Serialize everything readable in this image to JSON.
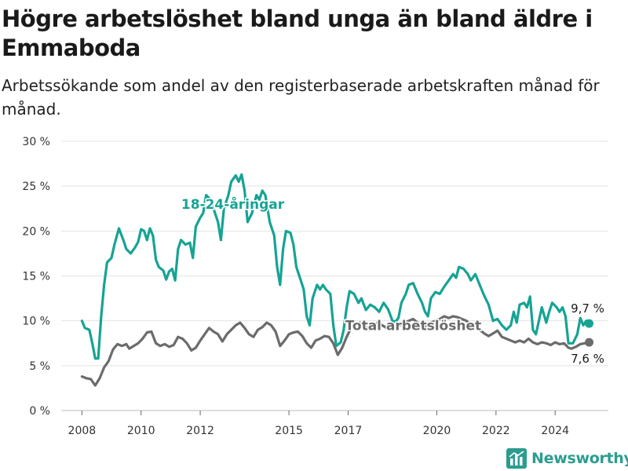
{
  "title": "Högre arbetslöshet bland unga än bland äldre i Emmaboda",
  "subtitle": "Arbetssökande som andel av den registerbaserade arbetskraften månad för månad.",
  "brand": {
    "name": "Newsworthy",
    "color": "#2a9d8f",
    "icon": "bar-chart-logo-icon"
  },
  "chart_data": {
    "type": "line",
    "x_unit": "year",
    "xlim": [
      2007.3,
      2025.8
    ],
    "ylim": [
      0,
      30
    ],
    "y_ticks": [
      0,
      5,
      10,
      15,
      20,
      25,
      30
    ],
    "y_tick_labels": [
      "0 %",
      "5 %",
      "10 %",
      "15 %",
      "20 %",
      "25 %",
      "30 %"
    ],
    "x_ticks": [
      2008,
      2010,
      2012,
      2015,
      2017,
      2020,
      2022,
      2024
    ],
    "x_tick_labels": [
      "2008",
      "2010",
      "2012",
      "2015",
      "2017",
      "2020",
      "2022",
      "2024"
    ],
    "grid": "horizontal",
    "series": [
      {
        "name": "18-24-åringar",
        "color": "#16a394",
        "end_value_label": "9,7 %",
        "points": [
          [
            2008.0,
            10.0
          ],
          [
            2008.1,
            9.2
          ],
          [
            2008.25,
            9.0
          ],
          [
            2008.35,
            7.5
          ],
          [
            2008.45,
            5.8
          ],
          [
            2008.55,
            5.8
          ],
          [
            2008.65,
            10.5
          ],
          [
            2008.75,
            14.0
          ],
          [
            2008.85,
            16.5
          ],
          [
            2009.0,
            17.0
          ],
          [
            2009.1,
            18.5
          ],
          [
            2009.25,
            20.3
          ],
          [
            2009.4,
            19.0
          ],
          [
            2009.5,
            18.0
          ],
          [
            2009.65,
            17.5
          ],
          [
            2009.8,
            18.2
          ],
          [
            2009.9,
            18.8
          ],
          [
            2010.0,
            20.2
          ],
          [
            2010.1,
            20.0
          ],
          [
            2010.2,
            19.0
          ],
          [
            2010.3,
            20.3
          ],
          [
            2010.4,
            19.5
          ],
          [
            2010.5,
            16.8
          ],
          [
            2010.6,
            16.0
          ],
          [
            2010.75,
            15.6
          ],
          [
            2010.85,
            14.6
          ],
          [
            2010.95,
            15.5
          ],
          [
            2011.05,
            15.8
          ],
          [
            2011.15,
            14.5
          ],
          [
            2011.25,
            18.0
          ],
          [
            2011.35,
            19.0
          ],
          [
            2011.5,
            18.5
          ],
          [
            2011.65,
            18.7
          ],
          [
            2011.75,
            17.0
          ],
          [
            2011.85,
            20.5
          ],
          [
            2012.0,
            21.5
          ],
          [
            2012.1,
            22.0
          ],
          [
            2012.2,
            24.0
          ],
          [
            2012.35,
            23.5
          ],
          [
            2012.5,
            22.0
          ],
          [
            2012.6,
            21.0
          ],
          [
            2012.7,
            19.0
          ],
          [
            2012.8,
            22.5
          ],
          [
            2012.95,
            24.0
          ],
          [
            2013.05,
            25.5
          ],
          [
            2013.2,
            26.2
          ],
          [
            2013.3,
            25.5
          ],
          [
            2013.4,
            26.3
          ],
          [
            2013.5,
            24.5
          ],
          [
            2013.6,
            21.0
          ],
          [
            2013.75,
            22.0
          ],
          [
            2013.9,
            24.0
          ],
          [
            2014.0,
            23.5
          ],
          [
            2014.1,
            24.5
          ],
          [
            2014.2,
            24.0
          ],
          [
            2014.35,
            21.0
          ],
          [
            2014.5,
            19.5
          ],
          [
            2014.6,
            16.0
          ],
          [
            2014.7,
            14.0
          ],
          [
            2014.8,
            18.0
          ],
          [
            2014.9,
            20.0
          ],
          [
            2015.05,
            19.8
          ],
          [
            2015.15,
            18.5
          ],
          [
            2015.25,
            16.0
          ],
          [
            2015.4,
            14.5
          ],
          [
            2015.5,
            13.5
          ],
          [
            2015.6,
            10.5
          ],
          [
            2015.7,
            9.5
          ],
          [
            2015.8,
            12.5
          ],
          [
            2015.95,
            14.0
          ],
          [
            2016.05,
            13.5
          ],
          [
            2016.15,
            14.0
          ],
          [
            2016.25,
            13.5
          ],
          [
            2016.4,
            13.0
          ],
          [
            2016.5,
            9.5
          ],
          [
            2016.6,
            7.2
          ],
          [
            2016.75,
            7.6
          ],
          [
            2016.85,
            9.0
          ],
          [
            2016.95,
            11.5
          ],
          [
            2017.05,
            13.3
          ],
          [
            2017.2,
            13.0
          ],
          [
            2017.35,
            12.0
          ],
          [
            2017.45,
            12.5
          ],
          [
            2017.6,
            11.2
          ],
          [
            2017.75,
            11.8
          ],
          [
            2017.9,
            11.5
          ],
          [
            2018.05,
            11.0
          ],
          [
            2018.2,
            12.0
          ],
          [
            2018.35,
            11.3
          ],
          [
            2018.5,
            10.0
          ],
          [
            2018.6,
            9.9
          ],
          [
            2018.7,
            10.3
          ],
          [
            2018.8,
            12.0
          ],
          [
            2018.95,
            13.0
          ],
          [
            2019.05,
            14.0
          ],
          [
            2019.2,
            14.2
          ],
          [
            2019.35,
            13.0
          ],
          [
            2019.5,
            12.0
          ],
          [
            2019.6,
            11.0
          ],
          [
            2019.7,
            10.5
          ],
          [
            2019.8,
            12.5
          ],
          [
            2019.95,
            13.2
          ],
          [
            2020.1,
            13.0
          ],
          [
            2020.25,
            13.8
          ],
          [
            2020.4,
            14.5
          ],
          [
            2020.55,
            15.2
          ],
          [
            2020.65,
            14.8
          ],
          [
            2020.75,
            16.0
          ],
          [
            2020.9,
            15.8
          ],
          [
            2021.05,
            15.2
          ],
          [
            2021.15,
            14.5
          ],
          [
            2021.3,
            15.2
          ],
          [
            2021.45,
            14.0
          ],
          [
            2021.6,
            12.8
          ],
          [
            2021.75,
            11.8
          ],
          [
            2021.9,
            10.0
          ],
          [
            2022.05,
            10.2
          ],
          [
            2022.2,
            9.5
          ],
          [
            2022.35,
            9.0
          ],
          [
            2022.5,
            9.5
          ],
          [
            2022.6,
            11.0
          ],
          [
            2022.7,
            9.8
          ],
          [
            2022.8,
            11.8
          ],
          [
            2022.95,
            12.0
          ],
          [
            2023.05,
            11.5
          ],
          [
            2023.15,
            12.7
          ],
          [
            2023.25,
            9.0
          ],
          [
            2023.35,
            8.5
          ],
          [
            2023.45,
            10.0
          ],
          [
            2023.55,
            11.5
          ],
          [
            2023.7,
            9.8
          ],
          [
            2023.8,
            11.0
          ],
          [
            2023.9,
            12.0
          ],
          [
            2024.05,
            11.5
          ],
          [
            2024.15,
            11.0
          ],
          [
            2024.25,
            11.5
          ],
          [
            2024.35,
            10.5
          ],
          [
            2024.45,
            7.5
          ],
          [
            2024.6,
            7.5
          ],
          [
            2024.75,
            8.5
          ],
          [
            2024.85,
            10.3
          ],
          [
            2024.95,
            9.5
          ],
          [
            2025.05,
            10.0
          ],
          [
            2025.15,
            9.7
          ]
        ]
      },
      {
        "name": "Total arbetslöshet",
        "color": "#6b6b6b",
        "end_value_label": "7,6 %",
        "points": [
          [
            2008.0,
            3.8
          ],
          [
            2008.15,
            3.6
          ],
          [
            2008.3,
            3.5
          ],
          [
            2008.45,
            2.8
          ],
          [
            2008.6,
            3.6
          ],
          [
            2008.75,
            4.8
          ],
          [
            2008.9,
            5.5
          ],
          [
            2009.05,
            6.8
          ],
          [
            2009.2,
            7.4
          ],
          [
            2009.35,
            7.2
          ],
          [
            2009.5,
            7.4
          ],
          [
            2009.6,
            6.9
          ],
          [
            2009.75,
            7.2
          ],
          [
            2009.9,
            7.5
          ],
          [
            2010.05,
            8.0
          ],
          [
            2010.2,
            8.7
          ],
          [
            2010.35,
            8.8
          ],
          [
            2010.5,
            7.5
          ],
          [
            2010.65,
            7.2
          ],
          [
            2010.8,
            7.4
          ],
          [
            2010.95,
            7.1
          ],
          [
            2011.1,
            7.3
          ],
          [
            2011.25,
            8.2
          ],
          [
            2011.4,
            8.0
          ],
          [
            2011.55,
            7.5
          ],
          [
            2011.7,
            6.7
          ],
          [
            2011.85,
            7.0
          ],
          [
            2012.0,
            7.8
          ],
          [
            2012.15,
            8.5
          ],
          [
            2012.3,
            9.2
          ],
          [
            2012.45,
            8.8
          ],
          [
            2012.6,
            8.5
          ],
          [
            2012.75,
            7.7
          ],
          [
            2012.9,
            8.5
          ],
          [
            2013.05,
            9.0
          ],
          [
            2013.2,
            9.5
          ],
          [
            2013.35,
            9.8
          ],
          [
            2013.5,
            9.2
          ],
          [
            2013.65,
            8.5
          ],
          [
            2013.8,
            8.2
          ],
          [
            2013.95,
            9.0
          ],
          [
            2014.1,
            9.3
          ],
          [
            2014.25,
            9.8
          ],
          [
            2014.4,
            9.5
          ],
          [
            2014.55,
            8.8
          ],
          [
            2014.7,
            7.2
          ],
          [
            2014.85,
            7.8
          ],
          [
            2015.0,
            8.5
          ],
          [
            2015.15,
            8.7
          ],
          [
            2015.3,
            8.8
          ],
          [
            2015.45,
            8.3
          ],
          [
            2015.6,
            7.5
          ],
          [
            2015.75,
            7.0
          ],
          [
            2015.9,
            7.8
          ],
          [
            2016.05,
            8.0
          ],
          [
            2016.2,
            8.3
          ],
          [
            2016.35,
            8.2
          ],
          [
            2016.5,
            7.5
          ],
          [
            2016.65,
            6.2
          ],
          [
            2016.8,
            7.0
          ],
          [
            2016.95,
            8.2
          ],
          [
            2017.1,
            9.2
          ],
          [
            2017.25,
            9.5
          ],
          [
            2017.4,
            9.8
          ],
          [
            2017.55,
            9.4
          ],
          [
            2017.7,
            9.0
          ],
          [
            2017.85,
            9.3
          ],
          [
            2018.0,
            9.8
          ],
          [
            2018.15,
            9.5
          ],
          [
            2018.3,
            9.2
          ],
          [
            2018.45,
            9.6
          ],
          [
            2018.6,
            9.3
          ],
          [
            2018.75,
            9.5
          ],
          [
            2018.9,
            9.8
          ],
          [
            2019.05,
            10.0
          ],
          [
            2019.2,
            10.2
          ],
          [
            2019.35,
            9.8
          ],
          [
            2019.5,
            9.5
          ],
          [
            2019.65,
            9.4
          ],
          [
            2019.8,
            9.8
          ],
          [
            2019.95,
            10.0
          ],
          [
            2020.1,
            10.2
          ],
          [
            2020.25,
            10.5
          ],
          [
            2020.4,
            10.3
          ],
          [
            2020.55,
            10.5
          ],
          [
            2020.7,
            10.4
          ],
          [
            2020.85,
            10.2
          ],
          [
            2021.0,
            10.0
          ],
          [
            2021.15,
            9.6
          ],
          [
            2021.3,
            9.2
          ],
          [
            2021.45,
            9.0
          ],
          [
            2021.6,
            8.6
          ],
          [
            2021.75,
            8.3
          ],
          [
            2021.9,
            8.6
          ],
          [
            2022.05,
            8.9
          ],
          [
            2022.2,
            8.2
          ],
          [
            2022.35,
            8.0
          ],
          [
            2022.5,
            7.8
          ],
          [
            2022.65,
            7.6
          ],
          [
            2022.8,
            7.8
          ],
          [
            2022.95,
            7.6
          ],
          [
            2023.1,
            8.0
          ],
          [
            2023.25,
            7.6
          ],
          [
            2023.4,
            7.4
          ],
          [
            2023.55,
            7.6
          ],
          [
            2023.7,
            7.5
          ],
          [
            2023.85,
            7.3
          ],
          [
            2024.0,
            7.6
          ],
          [
            2024.15,
            7.4
          ],
          [
            2024.3,
            7.5
          ],
          [
            2024.45,
            7.0
          ],
          [
            2024.55,
            6.9
          ],
          [
            2024.7,
            7.1
          ],
          [
            2024.85,
            7.4
          ],
          [
            2025.0,
            7.5
          ],
          [
            2025.15,
            7.6
          ]
        ]
      }
    ]
  }
}
